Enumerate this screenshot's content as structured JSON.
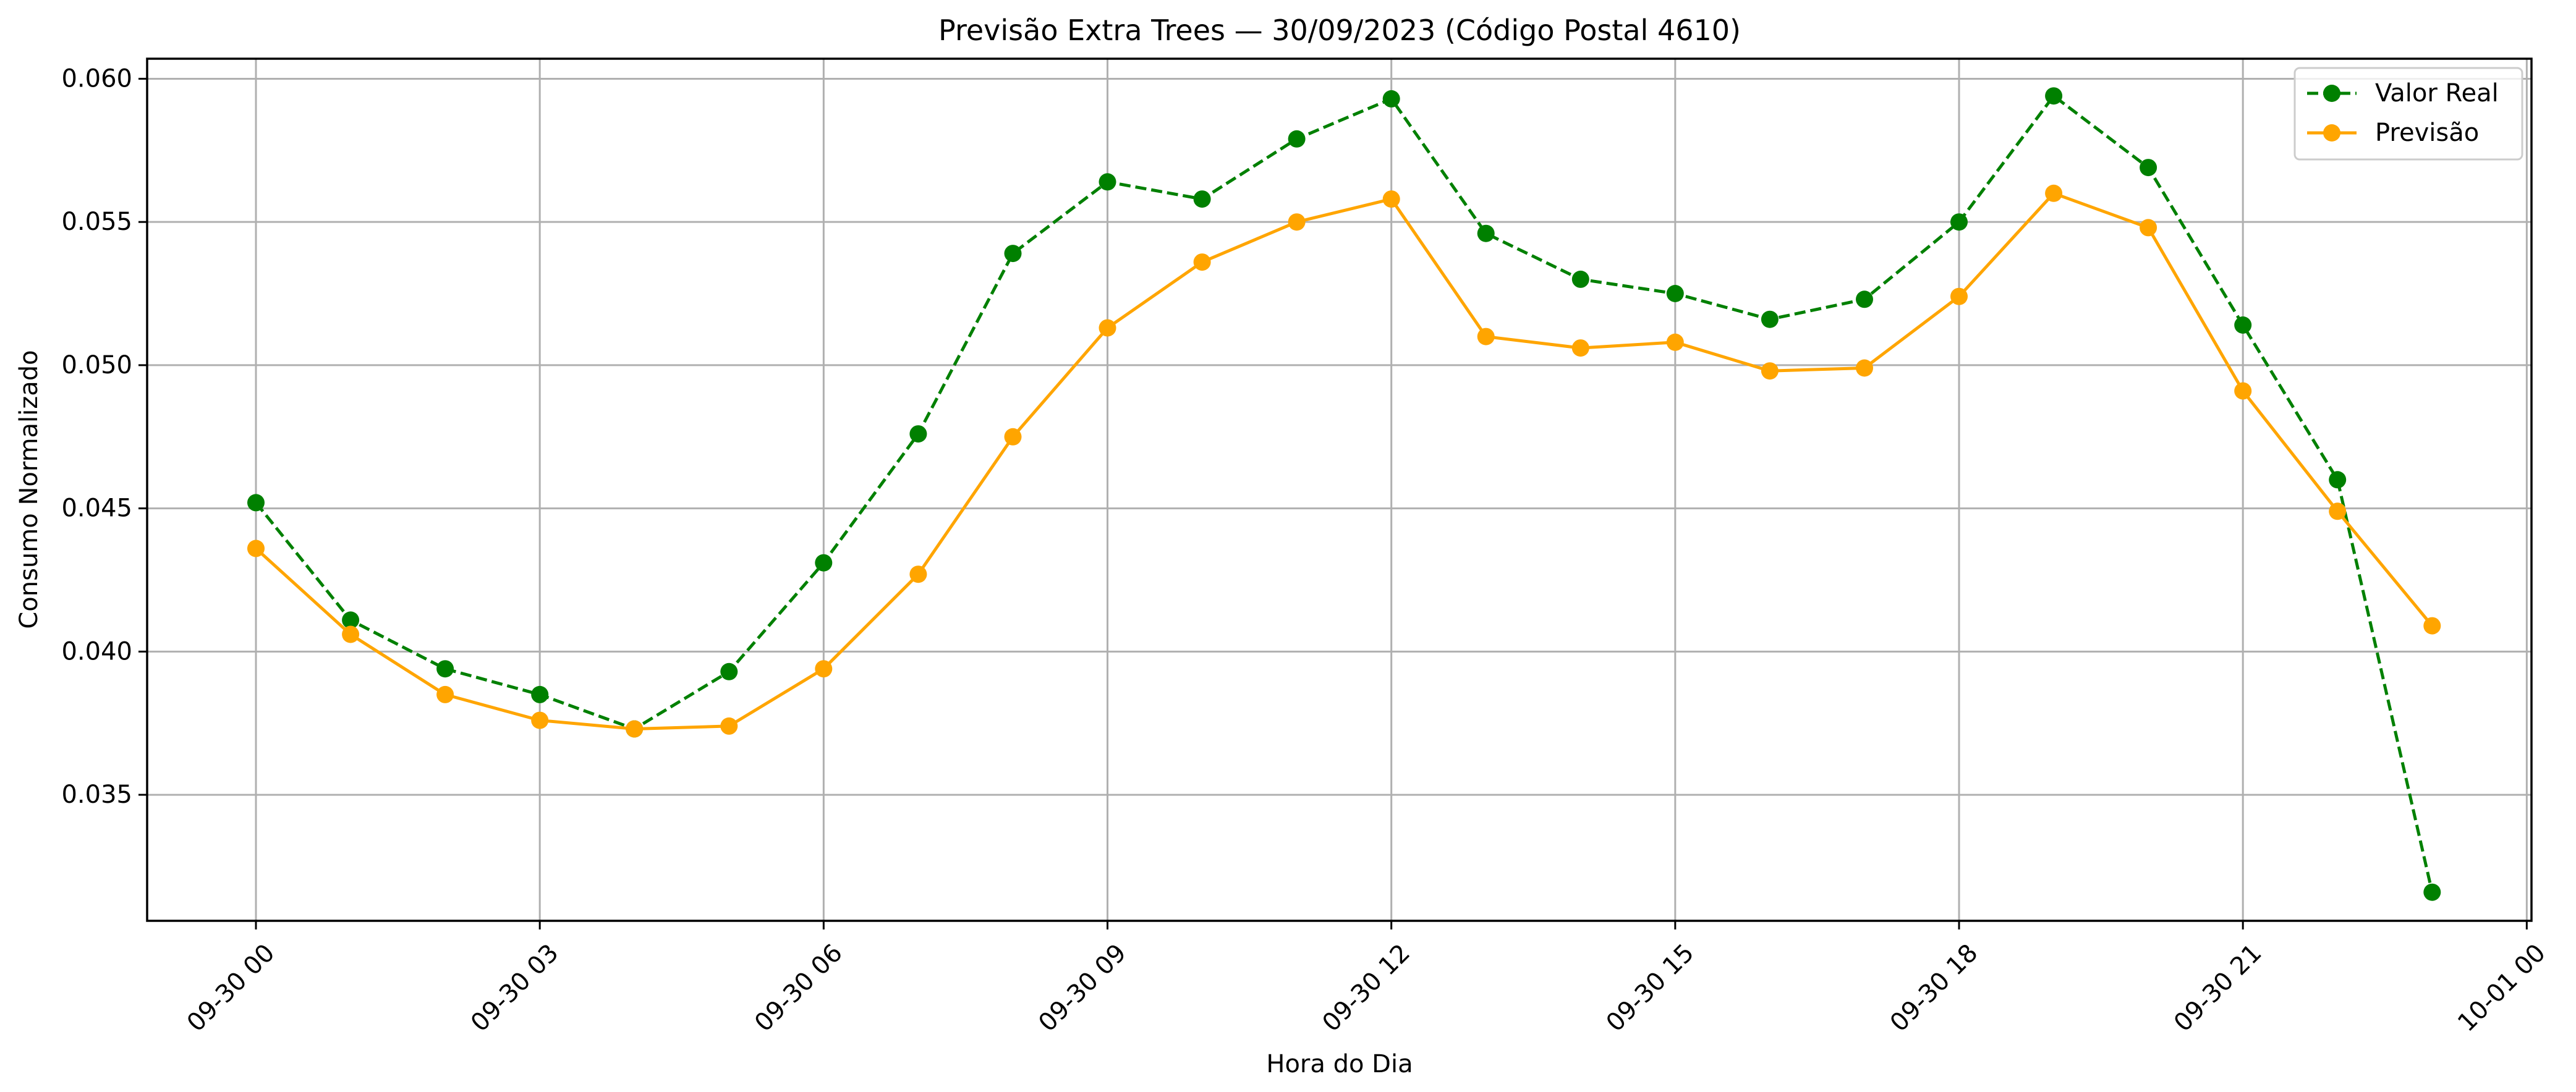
{
  "chart_data": {
    "type": "line",
    "title": "Previsão Extra Trees — 30/09/2023 (Código Postal 4610)",
    "xlabel": "Hora do Dia",
    "ylabel": "Consumo Normalizado",
    "x": [
      "09-30 00",
      "09-30 01",
      "09-30 02",
      "09-30 03",
      "09-30 04",
      "09-30 05",
      "09-30 06",
      "09-30 07",
      "09-30 08",
      "09-30 09",
      "09-30 10",
      "09-30 11",
      "09-30 12",
      "09-30 13",
      "09-30 14",
      "09-30 15",
      "09-30 16",
      "09-30 17",
      "09-30 18",
      "09-30 19",
      "09-30 20",
      "09-30 21",
      "09-30 22",
      "09-30 23"
    ],
    "x_ticks": [
      "09-30 00",
      "09-30 03",
      "09-30 06",
      "09-30 09",
      "09-30 12",
      "09-30 15",
      "09-30 18",
      "09-30 21",
      "10-01 00"
    ],
    "xlim": [
      "09-29 22.85",
      "10-01 00.05"
    ],
    "y_ticks": [
      "0.035",
      "0.040",
      "0.045",
      "0.050",
      "0.055",
      "0.060"
    ],
    "ylim": [
      0.0306,
      0.0607
    ],
    "grid": true,
    "legend_position": "top-right",
    "series": [
      {
        "name": "Valor Real",
        "color": "#008000",
        "line_style": "dashed",
        "marker": "circle",
        "values": [
          0.0452,
          0.0411,
          0.0394,
          0.0385,
          0.0373,
          0.0393,
          0.0431,
          0.0476,
          0.0539,
          0.0564,
          0.0558,
          0.0579,
          0.0593,
          0.0546,
          0.053,
          0.0525,
          0.0516,
          0.0523,
          0.055,
          0.0594,
          0.0569,
          0.0514,
          0.046,
          0.0316
        ]
      },
      {
        "name": "Previsão",
        "color": "#ffa500",
        "line_style": "solid",
        "marker": "circle",
        "values": [
          0.0436,
          0.0406,
          0.0385,
          0.0376,
          0.0373,
          0.0374,
          0.0394,
          0.0427,
          0.0475,
          0.0513,
          0.0536,
          0.055,
          0.0558,
          0.051,
          0.0506,
          0.0508,
          0.0498,
          0.0499,
          0.0524,
          0.056,
          0.0548,
          0.0491,
          0.0449,
          0.0409
        ]
      }
    ]
  }
}
